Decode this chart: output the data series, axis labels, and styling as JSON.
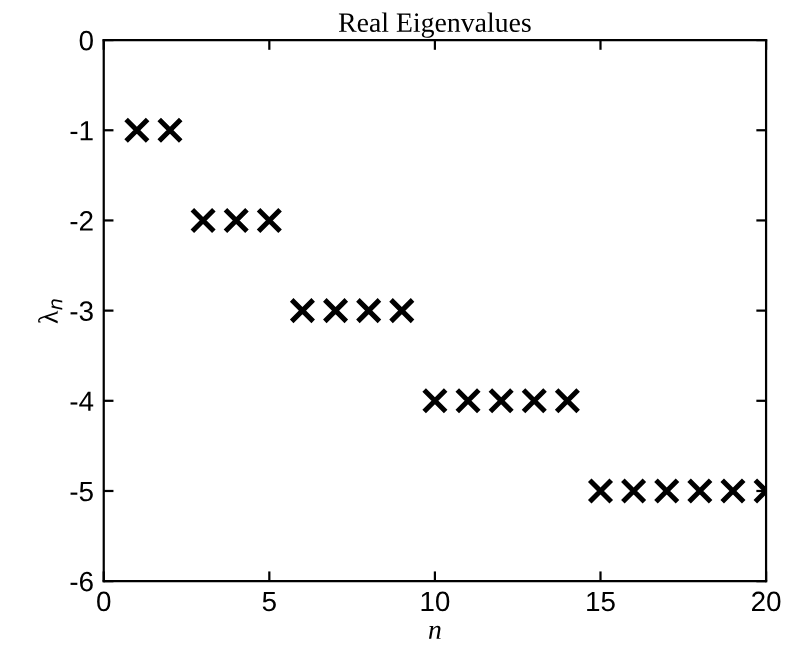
{
  "chart_data": {
    "type": "scatter",
    "title": "Real Eigenvalues",
    "xlabel": "n",
    "ylabel": "λ$_{n}$",
    "x": [
      1,
      2,
      3,
      4,
      5,
      6,
      7,
      8,
      9,
      10,
      11,
      12,
      13,
      14,
      15,
      16,
      17,
      18,
      19,
      20
    ],
    "series": [
      {
        "color": "#000000",
        "values": [
          -1,
          -1,
          -2,
          -2,
          -2,
          -3,
          -3,
          -3,
          -3,
          -4,
          -4,
          -4,
          -4,
          -4,
          -5,
          -5,
          -5,
          -5,
          -5,
          -5
        ]
      }
    ],
    "xlim": [
      0,
      20
    ],
    "xticks": [
      0,
      5,
      10,
      15,
      20
    ],
    "ylim": [
      -6,
      0
    ],
    "yticks": [
      -6,
      -5,
      -4,
      -3,
      -2,
      -1,
      0
    ],
    "marker": "cross",
    "grid": false,
    "legend": false
  }
}
